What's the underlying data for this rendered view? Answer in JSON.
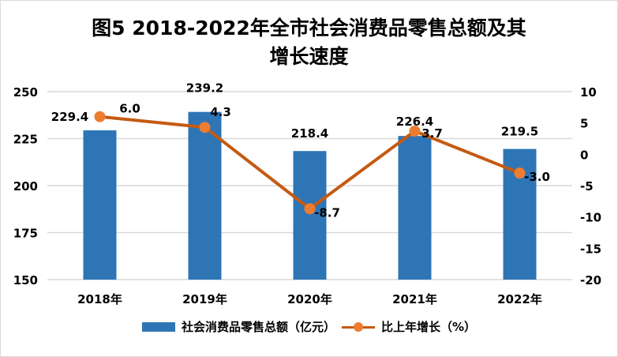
{
  "chart_data": {
    "type": "bar+line",
    "title_line1": "图5 2018-2022年全市社会消费品零售总额及其",
    "title_line2": "增长速度",
    "categories": [
      "2018年",
      "2019年",
      "2020年",
      "2021年",
      "2022年"
    ],
    "series": [
      {
        "name": "社会消费品零售总额（亿元）",
        "type": "bar",
        "axis": "left",
        "values": [
          229.4,
          239.2,
          218.4,
          226.4,
          219.5
        ],
        "labels": [
          "229.4",
          "239.2",
          "218.4",
          "226.4",
          "219.5"
        ],
        "color": "#2E75B6"
      },
      {
        "name": "比上年增长（%）",
        "type": "line",
        "axis": "right",
        "values": [
          6.0,
          4.3,
          -8.7,
          3.7,
          -3.0
        ],
        "labels": [
          "6.0",
          "4.3",
          "-8.7",
          "3.7",
          "-3.0"
        ],
        "color": "#C55A11",
        "marker_color": "#ED7D31"
      }
    ],
    "left_axis": {
      "ylim": [
        150,
        250
      ],
      "ticks": [
        "150",
        "175",
        "200",
        "225",
        "250"
      ]
    },
    "right_axis": {
      "ylim": [
        -20,
        10
      ],
      "ticks": [
        "-20",
        "-15",
        "-10",
        "-5",
        "0",
        "5",
        "10"
      ]
    },
    "grid": true,
    "legend_position": "bottom"
  }
}
